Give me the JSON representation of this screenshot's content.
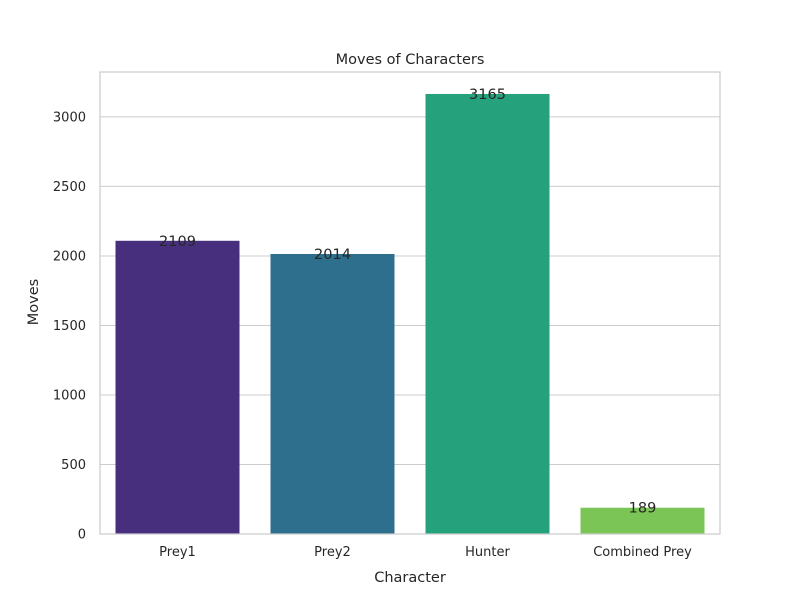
{
  "chart_data": {
    "type": "bar",
    "title": "Moves of Characters",
    "xlabel": "Character",
    "ylabel": "Moves",
    "categories": [
      "Prey1",
      "Prey2",
      "Hunter",
      "Combined Prey"
    ],
    "values": [
      2109,
      2014,
      3165,
      189
    ],
    "data_labels": [
      "2109",
      "2014",
      "3165",
      "189"
    ],
    "yticks": [
      0,
      500,
      1000,
      1500,
      2000,
      2500,
      3000
    ],
    "ylim": [
      0,
      3323
    ],
    "grid": true,
    "bar_colors": [
      "#472f7d",
      "#2e6f8e",
      "#25a17b",
      "#7ac555"
    ],
    "grid_color": "#cccccc",
    "spine_color": "#cccccc"
  }
}
